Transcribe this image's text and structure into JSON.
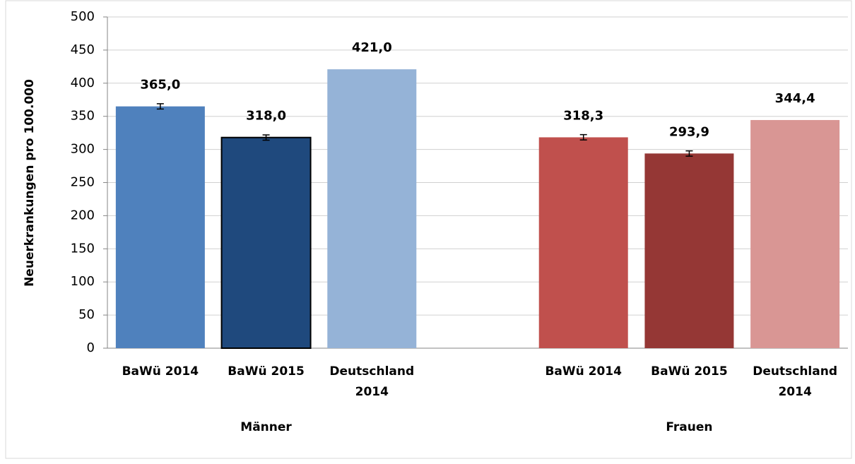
{
  "chart_data": {
    "type": "bar",
    "y_label": "Neuerkrankungen pro 100.000",
    "categories": [
      "BaWü 2014",
      "BaWü 2015",
      "Deutschland 2014",
      null,
      "BaWü 2014",
      "BaWü 2015",
      "Deutschland 2014"
    ],
    "values": [
      365.0,
      318.0,
      421.0,
      null,
      318.3,
      293.9,
      344.4
    ],
    "value_labels": [
      "365,0",
      "318,0",
      "421,0",
      null,
      "318,3",
      "293,9",
      "344,4"
    ],
    "errors": [
      4,
      4,
      null,
      null,
      4,
      4,
      null
    ],
    "colors": [
      "#4f81bd",
      "#1f497d",
      "#95b3d7",
      null,
      "#c0504d",
      "#953735",
      "#d99694"
    ],
    "groups": [
      "Männer",
      "Frauen"
    ],
    "ylim": [
      0,
      500
    ],
    "yticks": [
      0,
      50,
      100,
      150,
      200,
      250,
      300,
      350,
      400,
      450,
      500
    ],
    "grid": true
  }
}
